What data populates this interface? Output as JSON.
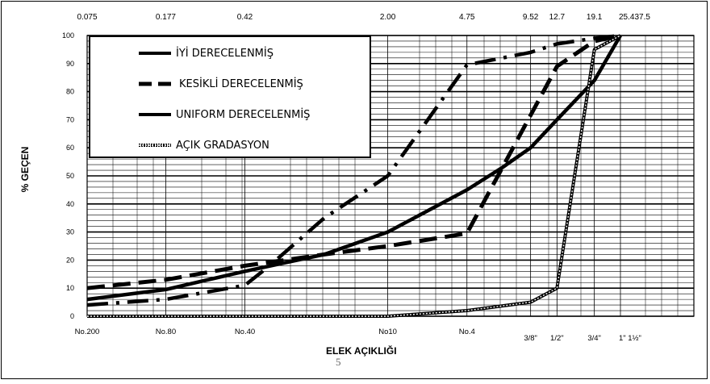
{
  "chart_data": {
    "type": "line",
    "xscale": "log",
    "xlim": [
      0.075,
      37.5
    ],
    "ylim": [
      0,
      100
    ],
    "xlabel": "ELEK AÇIKLIĞI",
    "ylabel": "% GEÇEN",
    "top_ticks": [
      {
        "value": 0.075,
        "label": "0.075"
      },
      {
        "value": 0.177,
        "label": "0.177"
      },
      {
        "value": 0.42,
        "label": "0.42"
      },
      {
        "value": 2.0,
        "label": "2.00"
      },
      {
        "value": 4.75,
        "label": "4.75"
      },
      {
        "value": 9.52,
        "label": "9.52"
      },
      {
        "value": 12.7,
        "label": "12.7"
      },
      {
        "value": 19.1,
        "label": "19.1"
      },
      {
        "value": 25.4,
        "label": "25.437.5"
      }
    ],
    "bottom_ticks": [
      {
        "value": 0.075,
        "label": "No.200",
        "row": 0
      },
      {
        "value": 0.177,
        "label": "No.80",
        "row": 0
      },
      {
        "value": 0.42,
        "label": "No.40",
        "row": 0
      },
      {
        "value": 2.0,
        "label": "No10",
        "row": 0
      },
      {
        "value": 4.75,
        "label": "No.4",
        "row": 0
      },
      {
        "value": 9.52,
        "label": "3/8\"",
        "row": 1
      },
      {
        "value": 12.7,
        "label": "1/2\"",
        "row": 1
      },
      {
        "value": 19.1,
        "label": "3/4\"",
        "row": 1
      },
      {
        "value": 25.4,
        "label": "1\"  1½\"",
        "row": 1
      }
    ],
    "y_ticks": [
      0,
      10,
      20,
      30,
      40,
      50,
      60,
      70,
      80,
      90,
      100
    ],
    "grid": true,
    "legend_position": "top-left",
    "series": [
      {
        "name": "İYİ DERECELENMİŞ",
        "style": "solid",
        "points": [
          [
            0.075,
            6
          ],
          [
            0.177,
            9.5
          ],
          [
            0.42,
            16
          ],
          [
            1.0,
            22
          ],
          [
            2.0,
            30
          ],
          [
            4.75,
            45
          ],
          [
            7.0,
            53
          ],
          [
            9.52,
            60
          ],
          [
            12.7,
            70
          ],
          [
            19.1,
            84
          ],
          [
            25.4,
            100
          ]
        ]
      },
      {
        "name": "KESİKLİ DERECELENMİŞ",
        "style": "dashed",
        "points": [
          [
            0.075,
            10
          ],
          [
            0.177,
            13
          ],
          [
            0.42,
            18
          ],
          [
            1.0,
            22
          ],
          [
            2.0,
            25
          ],
          [
            4.75,
            29.5
          ],
          [
            7.0,
            53
          ],
          [
            12.7,
            89
          ],
          [
            19.1,
            98
          ],
          [
            25.4,
            100
          ]
        ]
      },
      {
        "name": "UNIFORM DERECELENMİŞ",
        "style": "dashdot",
        "points": [
          [
            0.075,
            4
          ],
          [
            0.177,
            6
          ],
          [
            0.42,
            11
          ],
          [
            0.55,
            18
          ],
          [
            1.0,
            35
          ],
          [
            2.0,
            50
          ],
          [
            4.75,
            89.5
          ],
          [
            9.52,
            94
          ],
          [
            12.7,
            97
          ],
          [
            19.1,
            99
          ],
          [
            25.4,
            100
          ]
        ]
      },
      {
        "name": "AÇIK GRADASYON",
        "style": "dotted",
        "points": [
          [
            0.075,
            0
          ],
          [
            0.42,
            0
          ],
          [
            2.0,
            0
          ],
          [
            4.75,
            2
          ],
          [
            9.52,
            5
          ],
          [
            12.7,
            10
          ],
          [
            19.1,
            95
          ],
          [
            25.4,
            100
          ]
        ]
      }
    ]
  },
  "page_number": "5"
}
